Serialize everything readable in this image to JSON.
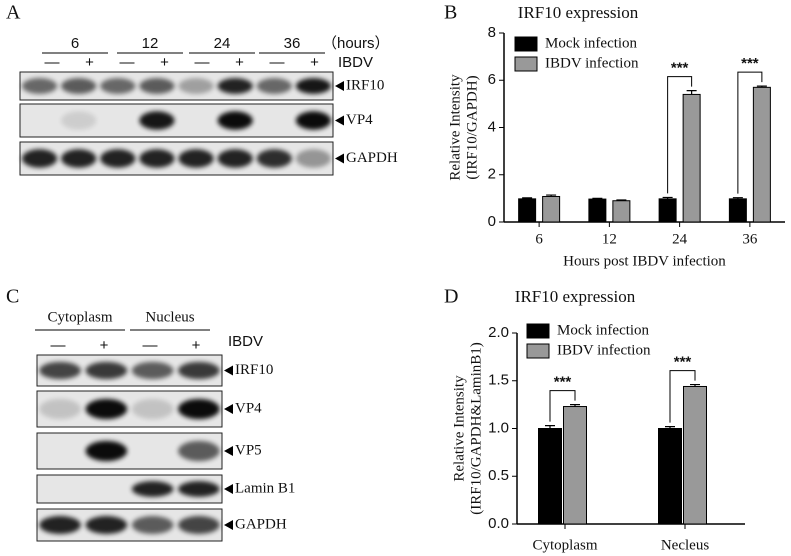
{
  "panels": {
    "blot_a": {
      "label": "A",
      "timepoints": [
        "6",
        "12",
        "24",
        "36"
      ],
      "unit": "（hours）",
      "treatment": "IBDV",
      "signs": [
        "—",
        "+",
        "—",
        "+",
        "—",
        "+",
        "—",
        "+"
      ],
      "proteins": [
        "IRF10",
        "VP4",
        "GAPDH"
      ]
    },
    "blot_c": {
      "label": "C",
      "fractions": [
        "Cytoplasm",
        "Nucleus"
      ],
      "treatment": "IBDV",
      "signs": [
        "—",
        "+",
        "—",
        "+"
      ],
      "proteins": [
        "IRF10",
        "VP4",
        "VP5",
        "Lamin B1",
        "GAPDH"
      ]
    }
  },
  "chart_data": [
    {
      "type": "bar",
      "panel_label": "B",
      "title": "IRF10  expression",
      "y_label": [
        "Relative Intensity",
        "(IRF10/GAPDH)"
      ],
      "x_label": "Hours post IBDV infection",
      "categories": [
        "6",
        "12",
        "24",
        "36"
      ],
      "series": [
        {
          "name": "Mock infection",
          "color": "#000000",
          "values": [
            0.98,
            0.97,
            0.98,
            0.98
          ],
          "errors": [
            0.04,
            0.03,
            0.06,
            0.05
          ]
        },
        {
          "name": "IBDV infection",
          "color": "#999999",
          "values": [
            1.08,
            0.9,
            5.4,
            5.7
          ],
          "errors": [
            0.06,
            0.03,
            0.16,
            0.05
          ]
        }
      ],
      "ylim": [
        0,
        8
      ],
      "yticks": [
        0,
        2,
        4,
        6,
        8
      ],
      "annotations": [
        {
          "text": "***",
          "category": "24"
        },
        {
          "text": "***",
          "category": "36"
        }
      ]
    },
    {
      "type": "bar",
      "panel_label": "D",
      "title": "IRF10  expression",
      "y_label": [
        "Relative Intensity",
        "(IRF10/GAPDH&LaminB1)"
      ],
      "categories": [
        "Cytoplasm",
        "Necleus"
      ],
      "series": [
        {
          "name": "Mock infection",
          "color": "#000000",
          "values": [
            1.0,
            1.0
          ],
          "errors": [
            0.03,
            0.02
          ]
        },
        {
          "name": "IBDV infection",
          "color": "#999999",
          "values": [
            1.23,
            1.44
          ],
          "errors": [
            0.02,
            0.02
          ]
        }
      ],
      "ylim": [
        0,
        2
      ],
      "yticks": [
        {
          "value": 0,
          "label": "0.0"
        },
        0.5,
        {
          "value": 1,
          "label": "1.0"
        },
        1.5,
        {
          "value": 2,
          "label": "2.0"
        }
      ],
      "annotations": [
        {
          "text": "***",
          "category": "Cytoplasm"
        },
        {
          "text": "***",
          "category": "Necleus"
        }
      ]
    }
  ]
}
